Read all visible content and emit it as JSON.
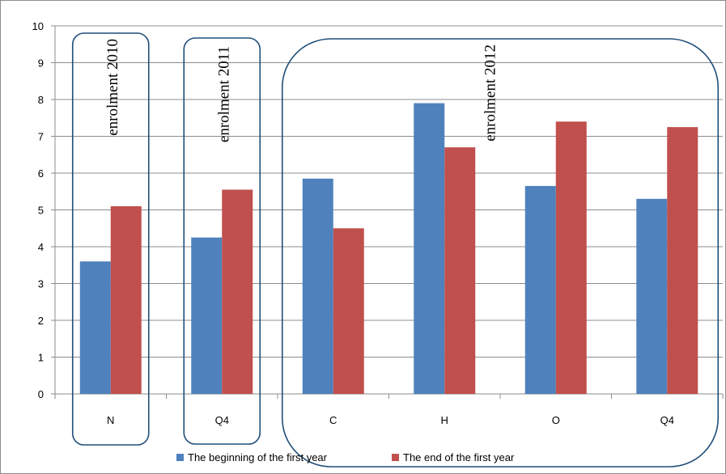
{
  "chart_data": {
    "type": "bar",
    "categories": [
      "N",
      "Q4",
      "C",
      "H",
      "O",
      "Q4"
    ],
    "series": [
      {
        "name": "The beginning of the first year",
        "color": "#4f81bd",
        "values": [
          3.6,
          4.25,
          5.85,
          7.9,
          5.65,
          5.3
        ]
      },
      {
        "name": "The end of the first year",
        "color": "#c0504d",
        "values": [
          5.1,
          5.55,
          4.5,
          6.7,
          7.4,
          7.25
        ]
      }
    ],
    "ylim": [
      0,
      10
    ],
    "yticks": [
      "0",
      "1",
      "2",
      "3",
      "4",
      "5",
      "6",
      "7",
      "8",
      "9",
      "10"
    ],
    "grid": true,
    "legend": "bottom",
    "groups": [
      {
        "label": "enrolment  2010",
        "categories": [
          0
        ]
      },
      {
        "label": "enrolment  2011",
        "categories": [
          1
        ]
      },
      {
        "label": "enrolment  2012",
        "categories": [
          2,
          3,
          4,
          5
        ]
      }
    ],
    "group_box_color": "#1f4e79"
  }
}
